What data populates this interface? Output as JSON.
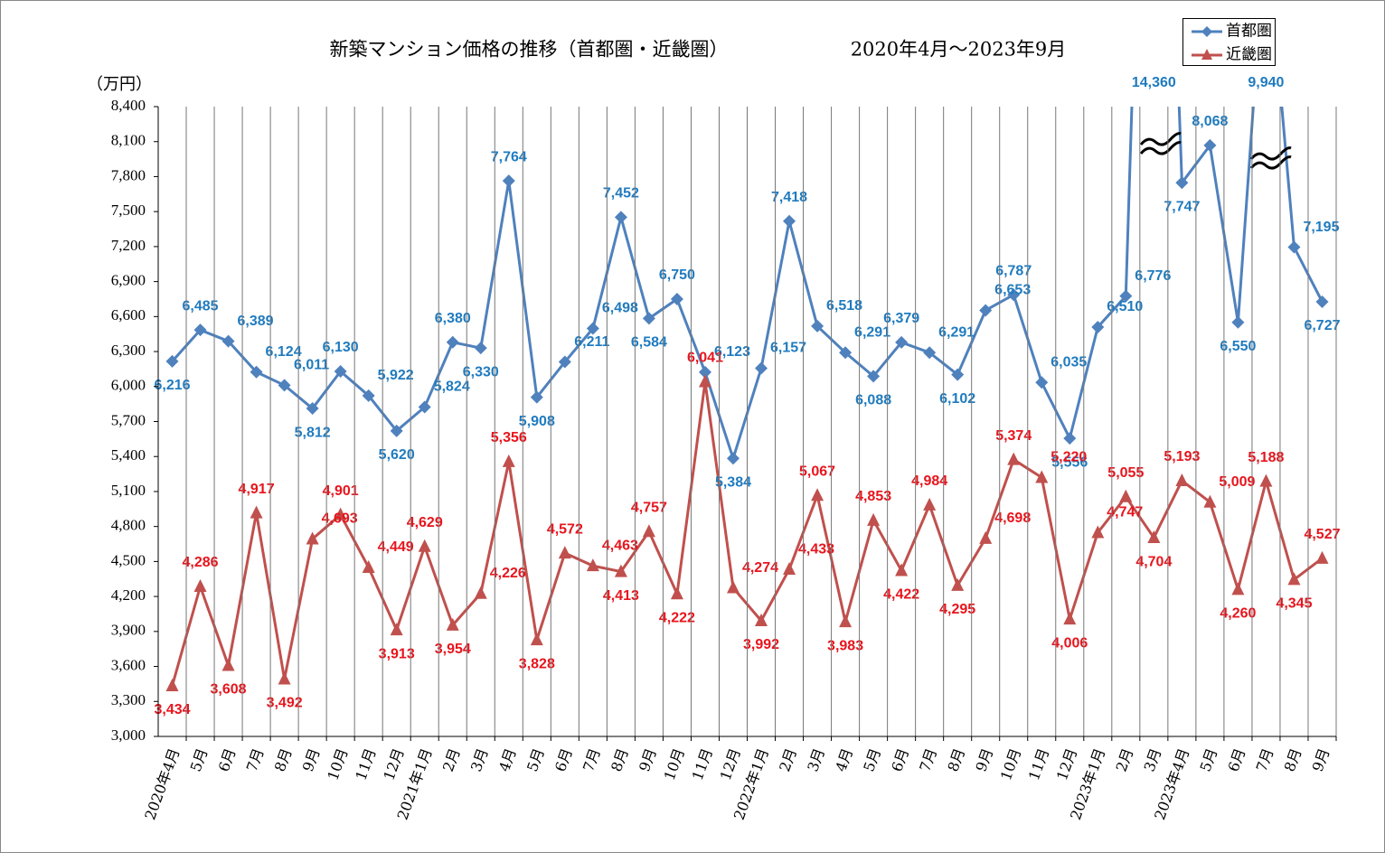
{
  "chart_data": {
    "type": "line",
    "title": "新築マンション価格の推移（首都圏・近畿圏）",
    "subtitle": "2020年4月～2023年9月",
    "y_label": "（万円）",
    "categories": [
      "2020年4月",
      "5月",
      "6月",
      "7月",
      "8月",
      "9月",
      "10月",
      "11月",
      "12月",
      "2021年1月",
      "2月",
      "3月",
      "4月",
      "5月",
      "6月",
      "7月",
      "8月",
      "9月",
      "10月",
      "11月",
      "12月",
      "2022年1月",
      "2月",
      "3月",
      "4月",
      "5月",
      "6月",
      "7月",
      "8月",
      "9月",
      "10月",
      "11月",
      "12月",
      "2023年1月",
      "2月",
      "3月",
      "2023年4月",
      "5月",
      "6月",
      "7月",
      "8月",
      "9月"
    ],
    "series": [
      {
        "name": "首都圏",
        "color": "#4f81bd",
        "label_color": "#1f7bbf",
        "marker": "diamond",
        "values": [
          6216,
          6485,
          6389,
          6124,
          6011,
          5812,
          6130,
          5922,
          5620,
          5824,
          6380,
          6330,
          7764,
          5908,
          6211,
          6498,
          7452,
          6584,
          6750,
          6123,
          5384,
          6157,
          7418,
          6518,
          6291,
          6088,
          6379,
          6291,
          6102,
          6653,
          6787,
          6035,
          5556,
          6510,
          6776,
          14360,
          7747,
          8068,
          6550,
          9940,
          7195,
          6727
        ],
        "value_labels": [
          "6,216",
          "6,485",
          "6,389",
          "6,124",
          "6,011",
          "5,812",
          "6,130",
          "5,922",
          "5,620",
          "5,824",
          "6,380",
          "6,330",
          "7,764",
          "5,908",
          "6,211",
          "6,498",
          "7,452",
          "6,584",
          "6,750",
          "6,123",
          "5,384",
          "6,157",
          "7,418",
          "6,518",
          "6,291",
          "6,088",
          "6,379",
          "6,291",
          "6,102",
          "6,653",
          "6,787",
          "6,035",
          "5,556",
          "6,510",
          "6,776",
          "14,360",
          "7,747",
          "8,068",
          "6,550",
          "9,940",
          "7,195",
          "6,727"
        ]
      },
      {
        "name": "近畿圏",
        "color": "#c0504d",
        "label_color": "#e8141c",
        "marker": "triangle",
        "values": [
          3434,
          4286,
          3608,
          4917,
          3492,
          4693,
          4901,
          4449,
          3913,
          4629,
          3954,
          4226,
          5356,
          3828,
          4572,
          4463,
          4413,
          4757,
          4222,
          6041,
          4274,
          3992,
          4433,
          5067,
          3983,
          4853,
          4422,
          4984,
          4295,
          4698,
          5374,
          5220,
          4006,
          4747,
          5055,
          4704,
          5193,
          5009,
          4260,
          5188,
          4345,
          4527
        ],
        "value_labels": [
          "3,434",
          "4,286",
          "3,608",
          "4,917",
          "3,492",
          "4,693",
          "4,901",
          "4,449",
          "3,913",
          "4,629",
          "3,954",
          "4,226",
          "5,356",
          "3,828",
          "4,572",
          "4,463",
          "4,413",
          "4,757",
          "4,222",
          "6,041",
          "4,274",
          "3,992",
          "4,433",
          "5,067",
          "3,983",
          "4,853",
          "4,422",
          "4,984",
          "4,295",
          "4,698",
          "5,374",
          "5,220",
          "4,006",
          "4,747",
          "5,055",
          "4,704",
          "5,193",
          "5,009",
          "4,260",
          "5,188",
          "4,345",
          "4,527"
        ]
      }
    ],
    "ylim": [
      3000,
      8400
    ],
    "yticks": [
      {
        "value": 3000,
        "label": "3,000"
      },
      {
        "value": 3300,
        "label": "3,300"
      },
      {
        "value": 3600,
        "label": "3,600"
      },
      {
        "value": 3900,
        "label": "3,900"
      },
      {
        "value": 4200,
        "label": "4,200"
      },
      {
        "value": 4500,
        "label": "4,500"
      },
      {
        "value": 4800,
        "label": "4,800"
      },
      {
        "value": 5100,
        "label": "5,100"
      },
      {
        "value": 5400,
        "label": "5,400"
      },
      {
        "value": 5700,
        "label": "5,700"
      },
      {
        "value": 6000,
        "label": "6,000"
      },
      {
        "value": 6300,
        "label": "6,300"
      },
      {
        "value": 6600,
        "label": "6,600"
      },
      {
        "value": 6900,
        "label": "6,900"
      },
      {
        "value": 7200,
        "label": "7,200"
      },
      {
        "value": 7500,
        "label": "7,500"
      },
      {
        "value": 7800,
        "label": "7,800"
      },
      {
        "value": 8100,
        "label": "8,100"
      },
      {
        "value": 8400,
        "label": "8,400"
      }
    ],
    "grid": "vertical",
    "legend": "top-right"
  }
}
